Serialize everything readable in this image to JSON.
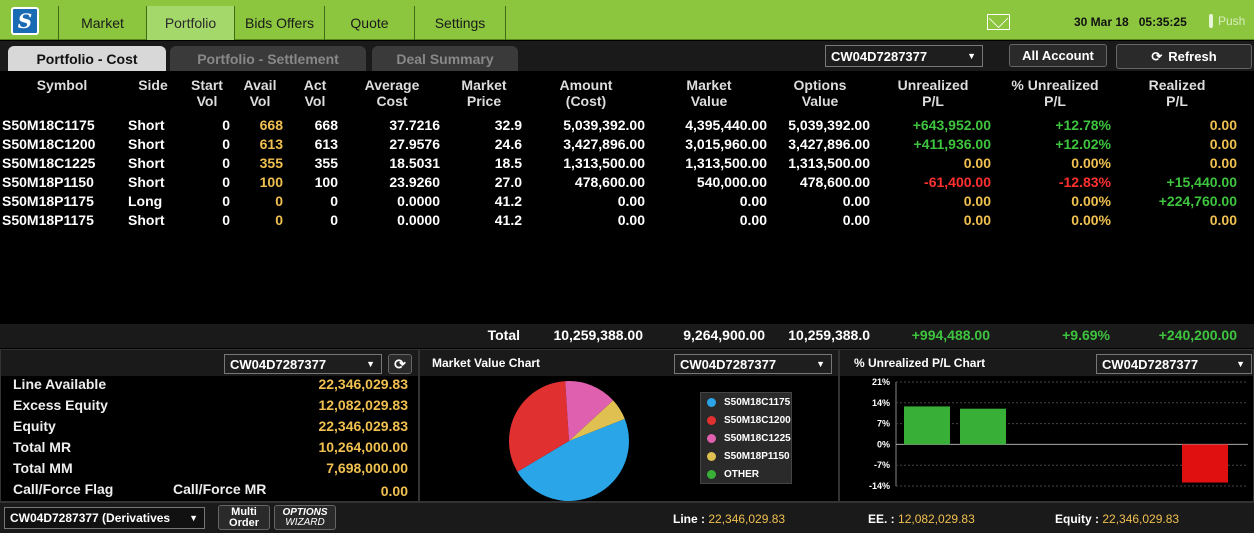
{
  "nav": {
    "logo_glyph": "S",
    "tabs": [
      "Market",
      "Portfolio",
      "Bids Offers",
      "Quote",
      "Settings"
    ],
    "date": "30 Mar 18",
    "time": "05:35:25",
    "push_label": "Push"
  },
  "subtabs": [
    "Portfolio - Cost",
    "Portfolio - Settlement",
    "Deal Summary"
  ],
  "account_select": "CW04D7287377",
  "all_account_label": "All Account",
  "refresh_label": "Refresh",
  "table": {
    "headers": [
      [
        "Symbol",
        ""
      ],
      [
        "Side",
        ""
      ],
      [
        "Start",
        "Vol"
      ],
      [
        "Avail",
        "Vol"
      ],
      [
        "Act",
        "Vol"
      ],
      [
        "Average",
        "Cost"
      ],
      [
        "Market",
        "Price"
      ],
      [
        "Amount",
        "(Cost)"
      ],
      [
        "Market",
        "Value"
      ],
      [
        "Options",
        "Value"
      ],
      [
        "Unrealized",
        "P/L"
      ],
      [
        "% Unrealized",
        "P/L"
      ],
      [
        "Realized",
        "P/L"
      ]
    ],
    "rows": [
      {
        "symbol": "S50M18C1175",
        "side": "Short",
        "start": "0",
        "avail": "668",
        "act": "668",
        "avg": "37.7216",
        "price": "32.9",
        "amount": "5,039,392.00",
        "mv": "4,395,440.00",
        "ov": "5,039,392.00",
        "upl": "+643,952.00",
        "pupl": "+12.78%",
        "rpl": "0.00",
        "upl_c": "green",
        "pupl_c": "green",
        "rpl_c": "yellow"
      },
      {
        "symbol": "S50M18C1200",
        "side": "Short",
        "start": "0",
        "avail": "613",
        "act": "613",
        "avg": "27.9576",
        "price": "24.6",
        "amount": "3,427,896.00",
        "mv": "3,015,960.00",
        "ov": "3,427,896.00",
        "upl": "+411,936.00",
        "pupl": "+12.02%",
        "rpl": "0.00",
        "upl_c": "green",
        "pupl_c": "green",
        "rpl_c": "yellow"
      },
      {
        "symbol": "S50M18C1225",
        "side": "Short",
        "start": "0",
        "avail": "355",
        "act": "355",
        "avg": "18.5031",
        "price": "18.5",
        "amount": "1,313,500.00",
        "mv": "1,313,500.00",
        "ov": "1,313,500.00",
        "upl": "0.00",
        "pupl": "0.00%",
        "rpl": "0.00",
        "upl_c": "yellow",
        "pupl_c": "yellow",
        "rpl_c": "yellow"
      },
      {
        "symbol": "S50M18P1150",
        "side": "Short",
        "start": "0",
        "avail": "100",
        "act": "100",
        "avg": "23.9260",
        "price": "27.0",
        "amount": "478,600.00",
        "mv": "540,000.00",
        "ov": "478,600.00",
        "upl": "-61,400.00",
        "pupl": "-12.83%",
        "rpl": "+15,440.00",
        "upl_c": "red",
        "pupl_c": "red",
        "rpl_c": "green"
      },
      {
        "symbol": "S50M18P1175",
        "side": "Long",
        "start": "0",
        "avail": "0",
        "act": "0",
        "avg": "0.0000",
        "price": "41.2",
        "amount": "0.00",
        "mv": "0.00",
        "ov": "0.00",
        "upl": "0.00",
        "pupl": "0.00%",
        "rpl": "+224,760.00",
        "upl_c": "yellow",
        "pupl_c": "yellow",
        "rpl_c": "green"
      },
      {
        "symbol": "S50M18P1175",
        "side": "Short",
        "start": "0",
        "avail": "0",
        "act": "0",
        "avg": "0.0000",
        "price": "41.2",
        "amount": "0.00",
        "mv": "0.00",
        "ov": "0.00",
        "upl": "0.00",
        "pupl": "0.00%",
        "rpl": "0.00",
        "upl_c": "yellow",
        "pupl_c": "yellow",
        "rpl_c": "yellow"
      }
    ],
    "total": {
      "label": "Total",
      "amount": "10,259,388.00",
      "mv": "9,264,900.00",
      "ov": "10,259,388.0",
      "upl": "+994,488.00",
      "pupl": "+9.69%",
      "rpl": "+240,200.00"
    }
  },
  "account_panel": {
    "select": "CW04D7287377",
    "items": [
      {
        "label": "Line Available",
        "value": "22,346,029.83"
      },
      {
        "label": "Excess Equity",
        "value": "12,082,029.83"
      },
      {
        "label": "Equity",
        "value": "22,346,029.83"
      },
      {
        "label": "Total MR",
        "value": "10,264,000.00"
      },
      {
        "label": "Total MM",
        "value": "7,698,000.00"
      }
    ],
    "flag_label": "Call/Force Flag",
    "mr_label": "Call/Force MR",
    "mr_value": "0.00"
  },
  "colors": {
    "blue": "#2aa5e8",
    "red": "#e03030",
    "pink": "#e060b0",
    "gold": "#e0c050",
    "green": "#38b038"
  },
  "chart_data": [
    {
      "type": "pie",
      "title": "Market Value Chart",
      "select": "CW04D7287377",
      "labels": [
        "S50M18C1175",
        "S50M18C1200",
        "S50M18C1225",
        "S50M18P1150",
        "OTHER"
      ],
      "values": [
        4395440.0,
        3015960.0,
        1313500.0,
        540000.0,
        0.0
      ],
      "colors": [
        "#2aa5e8",
        "#e03030",
        "#e060b0",
        "#e0c050",
        "#38b038"
      ],
      "legend": "right"
    },
    {
      "type": "bar",
      "title": "% Unrealized P/L Chart",
      "select": "CW04D7287377",
      "categories": [
        "S50M18C1175",
        "S50M18C1200",
        "S50M18C1225",
        "S50M18P1150"
      ],
      "values": [
        12.78,
        12.02,
        0.0,
        -12.83
      ],
      "colors": [
        "#38b038",
        "#38b038",
        "#38b038",
        "#e01010"
      ],
      "yticks": [
        "21%",
        "14%",
        "7%",
        "0%",
        "-7%",
        "-14%"
      ],
      "ylim": [
        -14,
        21
      ],
      "grid": true
    }
  ],
  "status": {
    "select": "CW04D7287377 (Derivatives",
    "multi_order": [
      "Multi",
      "Order"
    ],
    "wizard": [
      "OPTIONS",
      "WIZARD"
    ],
    "line_label": "Line : ",
    "line_value": "22,346,029.83",
    "ee_label": "EE. : ",
    "ee_value": "12,082,029.83",
    "equity_label": "Equity : ",
    "equity_value": "22,346,029.83"
  }
}
